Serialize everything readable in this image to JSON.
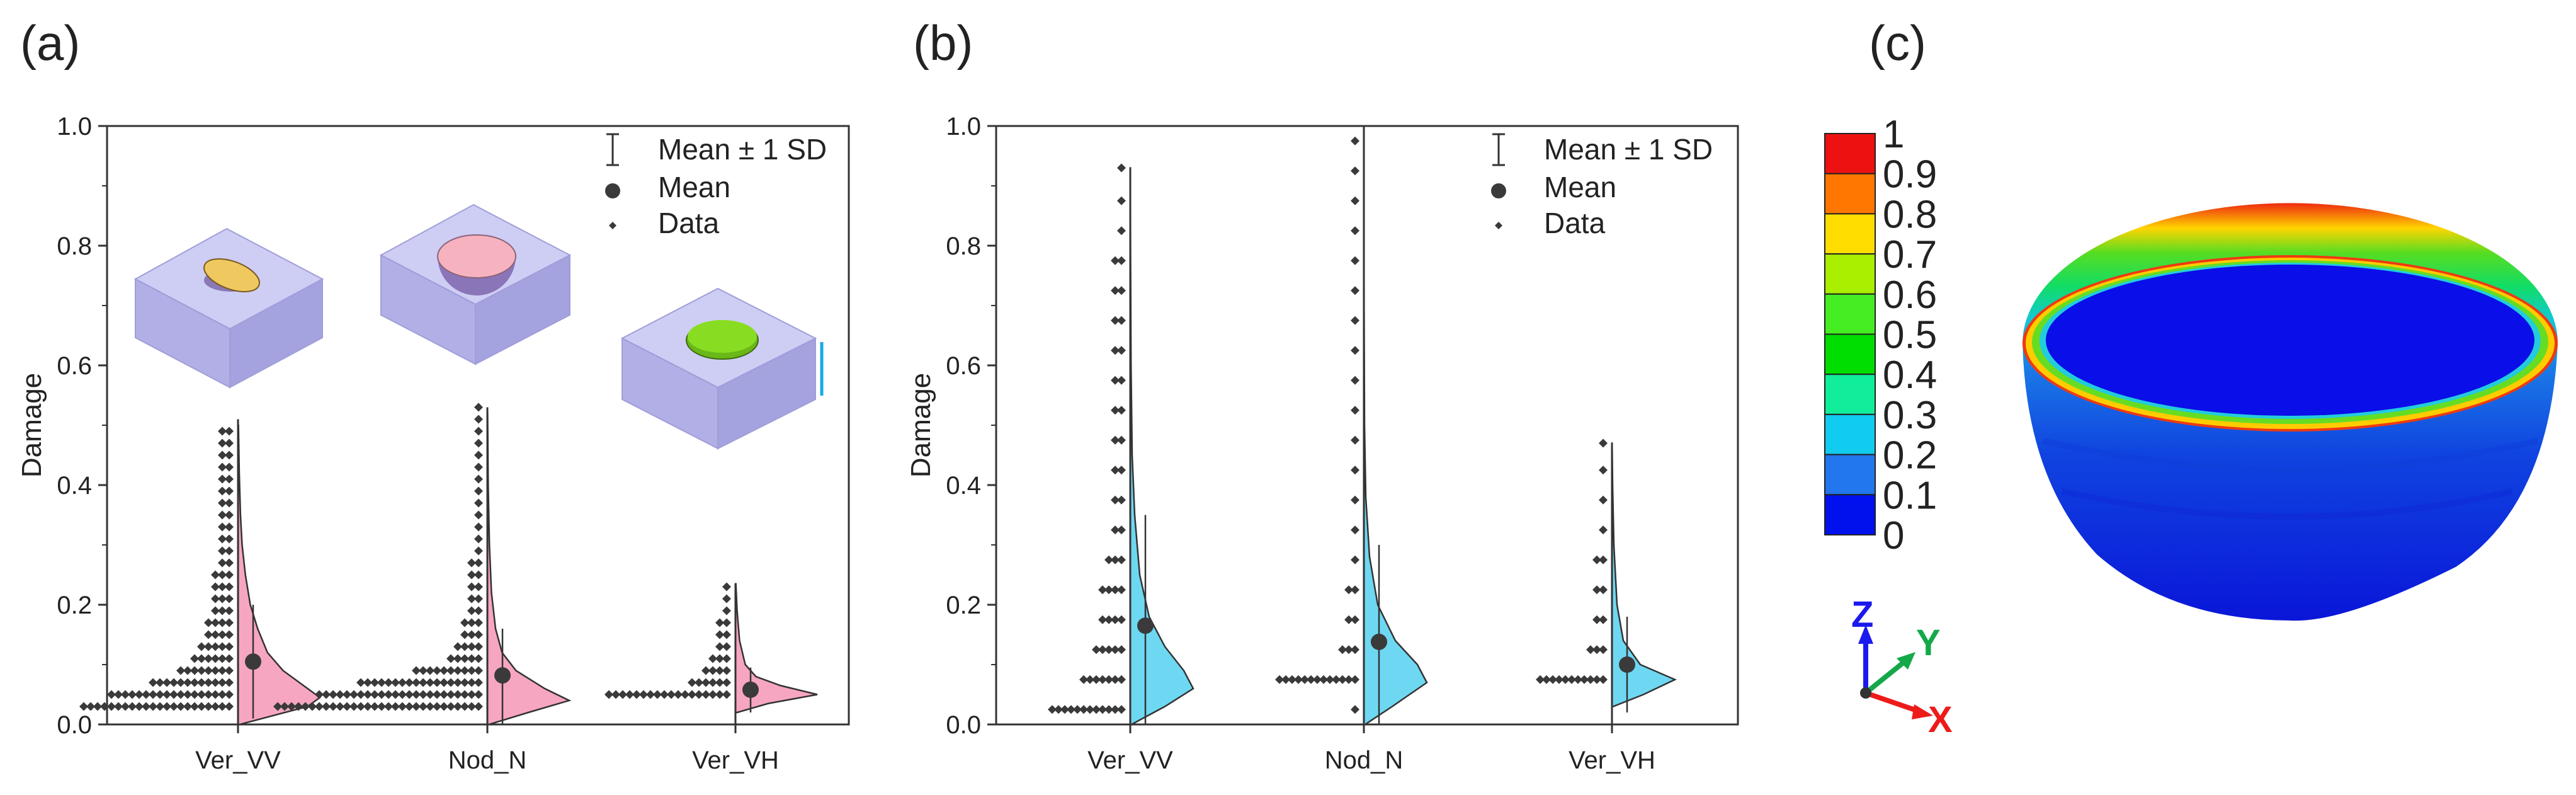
{
  "panels": {
    "a": {
      "label": "(a)"
    },
    "b": {
      "label": "(b)"
    },
    "c": {
      "label": "(c)"
    }
  },
  "legend": {
    "sd": "Mean ± 1 SD",
    "mean": "Mean",
    "data": "Data"
  },
  "colorbar": {
    "ticks": [
      "1",
      "0.9",
      "0.8",
      "0.7",
      "0.6",
      "0.5",
      "0.4",
      "0.3",
      "0.2",
      "0.1",
      "0"
    ],
    "colors": [
      "#ee1111",
      "#ff7700",
      "#ffdd00",
      "#aaee00",
      "#44ee22",
      "#00dd00",
      "#11ee99",
      "#11ccee",
      "#2277ee",
      "#0011ee"
    ]
  },
  "axes_triad": {
    "z": "Z",
    "y": "Y",
    "x": "X",
    "z_color": "#1a1aee",
    "y_color": "#14a84a",
    "x_color": "#ee1b1b"
  },
  "colors": {
    "pink": "#f7a6c2",
    "cyan": "#6ed8f2",
    "dots": "#3a3a3a",
    "box_purple": "#9d9be0"
  },
  "chart_data": [
    {
      "panel": "a",
      "type": "violin",
      "ylabel": "Damage",
      "ylim": [
        0,
        1.0
      ],
      "yticks": [
        "0.0",
        "0.2",
        "0.4",
        "0.6",
        "0.8",
        "1.0"
      ],
      "categories": [
        "Ver_VV",
        "Nod_N",
        "Ver_VH"
      ],
      "series": [
        {
          "name": "Ver_VV",
          "mean": 0.105,
          "sd_low": 0.01,
          "sd_high": 0.2,
          "max": 0.51,
          "min": 0.0,
          "data_levels": [
            0.03,
            0.05,
            0.07,
            0.09,
            0.11,
            0.13,
            0.15,
            0.17,
            0.19,
            0.21,
            0.23,
            0.25,
            0.27,
            0.29,
            0.31,
            0.33,
            0.35,
            0.37,
            0.39,
            0.41,
            0.43,
            0.45,
            0.47,
            0.49
          ],
          "data_counts": [
            22,
            18,
            12,
            8,
            6,
            5,
            4,
            4,
            3,
            3,
            3,
            3,
            2,
            2,
            2,
            2,
            2,
            2,
            2,
            2,
            2,
            2,
            2,
            2
          ],
          "kde": [
            [
              0.0,
              0.02
            ],
            [
              0.03,
              0.85
            ],
            [
              0.045,
              1.0
            ],
            [
              0.06,
              0.85
            ],
            [
              0.09,
              0.55
            ],
            [
              0.12,
              0.36
            ],
            [
              0.16,
              0.24
            ],
            [
              0.2,
              0.15
            ],
            [
              0.25,
              0.09
            ],
            [
              0.3,
              0.05
            ],
            [
              0.35,
              0.03
            ],
            [
              0.42,
              0.015
            ],
            [
              0.5,
              0.005
            ]
          ]
        },
        {
          "name": "Nod_N",
          "mean": 0.082,
          "sd_low": 0.0,
          "sd_high": 0.16,
          "max": 0.53,
          "min": 0.0,
          "data_levels": [
            0.03,
            0.05,
            0.07,
            0.09,
            0.11,
            0.13,
            0.15,
            0.17,
            0.19,
            0.21,
            0.23,
            0.25,
            0.27,
            0.29,
            0.31,
            0.33,
            0.35,
            0.37,
            0.39,
            0.41,
            0.43,
            0.45,
            0.47,
            0.49,
            0.51,
            0.53
          ],
          "data_counts": [
            30,
            24,
            18,
            10,
            5,
            4,
            3,
            3,
            2,
            2,
            2,
            2,
            2,
            1,
            1,
            1,
            1,
            1,
            1,
            1,
            1,
            1,
            1,
            1,
            1,
            1
          ],
          "kde": [
            [
              0.0,
              0.02
            ],
            [
              0.02,
              0.5
            ],
            [
              0.04,
              1.0
            ],
            [
              0.06,
              0.7
            ],
            [
              0.09,
              0.35
            ],
            [
              0.12,
              0.18
            ],
            [
              0.16,
              0.1
            ],
            [
              0.22,
              0.05
            ],
            [
              0.3,
              0.025
            ],
            [
              0.4,
              0.01
            ],
            [
              0.52,
              0.003
            ]
          ]
        },
        {
          "name": "Ver_VH",
          "mean": 0.058,
          "sd_low": 0.02,
          "sd_high": 0.095,
          "max": 0.235,
          "min": 0.0,
          "data_levels": [
            0.05,
            0.07,
            0.09,
            0.11,
            0.13,
            0.15,
            0.17,
            0.19,
            0.21,
            0.23
          ],
          "data_counts": [
            18,
            6,
            4,
            3,
            2,
            2,
            2,
            1,
            1,
            1
          ],
          "kde": [
            [
              0.02,
              0.02
            ],
            [
              0.035,
              0.4
            ],
            [
              0.05,
              1.0
            ],
            [
              0.065,
              0.55
            ],
            [
              0.08,
              0.25
            ],
            [
              0.1,
              0.12
            ],
            [
              0.14,
              0.05
            ],
            [
              0.19,
              0.02
            ],
            [
              0.235,
              0.005
            ]
          ]
        }
      ]
    },
    {
      "panel": "b",
      "type": "violin",
      "ylabel": "Damage",
      "ylim": [
        0,
        1.0
      ],
      "yticks": [
        "0.0",
        "0.2",
        "0.4",
        "0.6",
        "0.8",
        "1.0"
      ],
      "categories": [
        "Ver_VV",
        "Nod_N",
        "Ver_VH"
      ],
      "series": [
        {
          "name": "Ver_VV",
          "mean": 0.165,
          "sd_low": 0.0,
          "sd_high": 0.35,
          "max": 0.93,
          "min": 0.0,
          "data_levels": [
            0.025,
            0.075,
            0.125,
            0.175,
            0.225,
            0.275,
            0.325,
            0.375,
            0.425,
            0.475,
            0.525,
            0.575,
            0.625,
            0.675,
            0.725,
            0.775,
            0.825,
            0.875,
            0.93
          ],
          "data_counts": [
            12,
            7,
            5,
            4,
            4,
            3,
            2,
            2,
            2,
            2,
            2,
            2,
            2,
            2,
            2,
            2,
            1,
            1,
            1
          ],
          "kde": [
            [
              0.0,
              0.02
            ],
            [
              0.03,
              0.55
            ],
            [
              0.06,
              1.0
            ],
            [
              0.09,
              0.85
            ],
            [
              0.13,
              0.55
            ],
            [
              0.18,
              0.3
            ],
            [
              0.25,
              0.15
            ],
            [
              0.35,
              0.07
            ],
            [
              0.45,
              0.03
            ],
            [
              0.6,
              0.012
            ],
            [
              0.8,
              0.004
            ],
            [
              0.93,
              0.001
            ]
          ]
        },
        {
          "name": "Nod_N",
          "mean": 0.138,
          "sd_low": 0.0,
          "sd_high": 0.3,
          "max": 0.975,
          "min": 0.0,
          "data_levels": [
            0.075,
            0.125,
            0.175,
            0.225,
            0.275,
            0.325,
            0.375,
            0.425,
            0.475,
            0.525,
            0.575,
            0.625,
            0.675,
            0.725,
            0.775,
            0.825,
            0.875,
            0.925,
            0.975,
            0.025
          ],
          "data_counts": [
            13,
            3,
            2,
            2,
            1,
            1,
            1,
            1,
            1,
            1,
            1,
            1,
            1,
            1,
            1,
            1,
            1,
            1,
            1,
            1
          ],
          "kde": [
            [
              0.0,
              0.02
            ],
            [
              0.03,
              0.45
            ],
            [
              0.07,
              1.0
            ],
            [
              0.1,
              0.85
            ],
            [
              0.14,
              0.5
            ],
            [
              0.2,
              0.22
            ],
            [
              0.28,
              0.09
            ],
            [
              0.38,
              0.03
            ],
            [
              0.5,
              0.01
            ],
            [
              0.7,
              0.003
            ],
            [
              0.97,
              0.001
            ]
          ]
        },
        {
          "name": "Ver_VH",
          "mean": 0.1,
          "sd_low": 0.02,
          "sd_high": 0.18,
          "max": 0.47,
          "min": 0.0,
          "data_levels": [
            0.075,
            0.125,
            0.175,
            0.225,
            0.275,
            0.325,
            0.375,
            0.425,
            0.47
          ],
          "data_counts": [
            11,
            3,
            2,
            2,
            2,
            1,
            1,
            1,
            1
          ],
          "kde": [
            [
              0.03,
              0.02
            ],
            [
              0.05,
              0.5
            ],
            [
              0.075,
              1.0
            ],
            [
              0.1,
              0.45
            ],
            [
              0.14,
              0.18
            ],
            [
              0.2,
              0.08
            ],
            [
              0.3,
              0.03
            ],
            [
              0.4,
              0.01
            ],
            [
              0.47,
              0.002
            ]
          ]
        }
      ]
    }
  ]
}
